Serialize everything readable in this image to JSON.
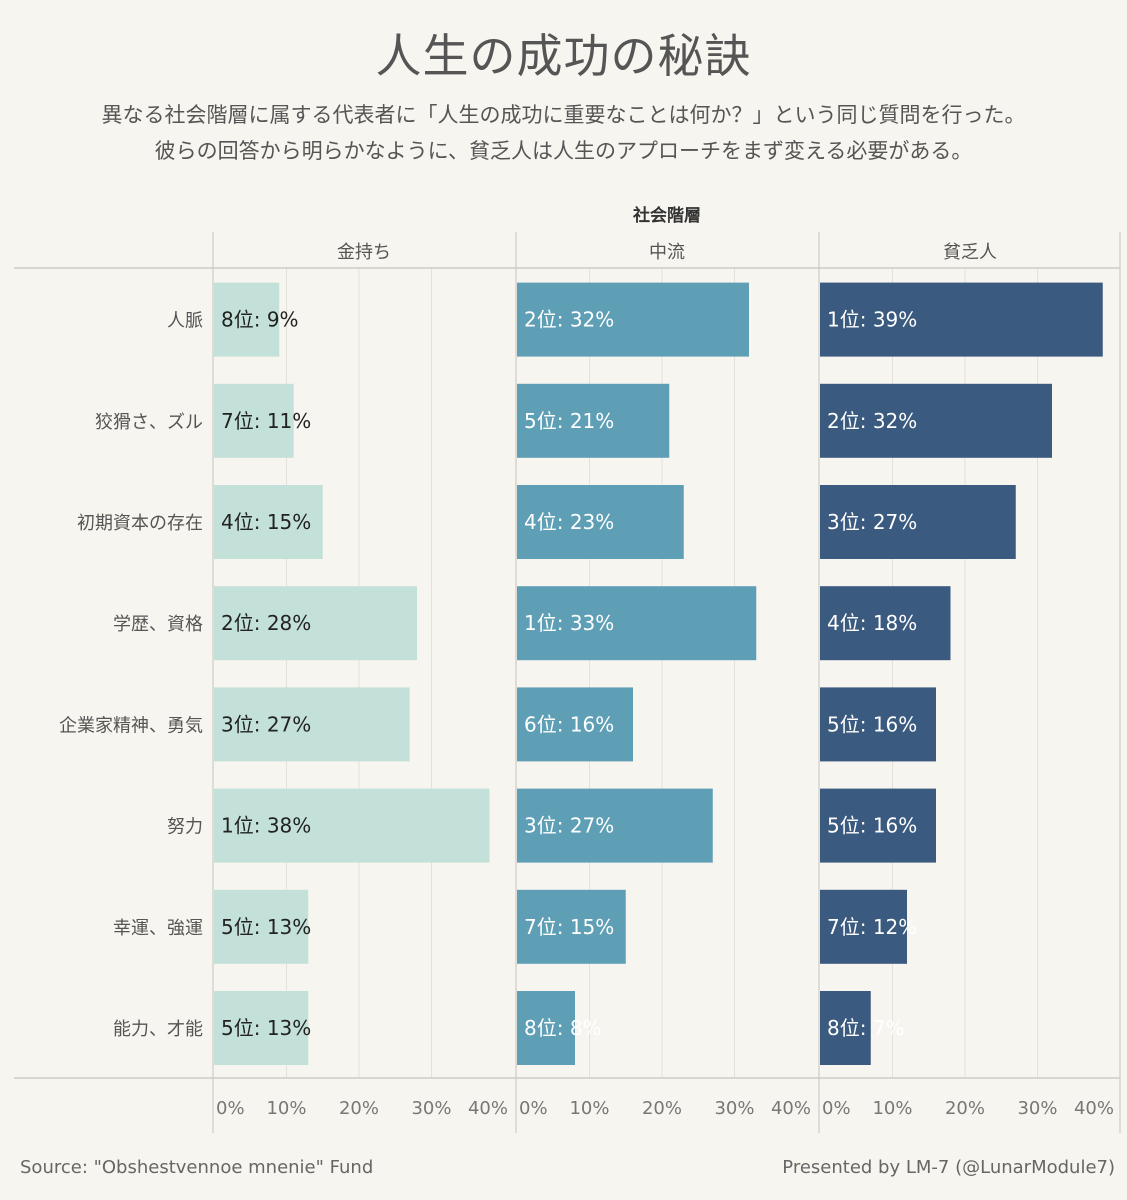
{
  "title": "人生の成功の秘訣",
  "subtitle_lines": [
    "異なる社会階層に属する代表者に「人生の成功に重要なことは何か？」という同じ質問を行った。",
    "彼らの回答から明らかなように、貧乏人は人生のアプローチをまず変える必要がある。"
  ],
  "footer": {
    "source": "Source: \"Obshestvennoe mnenie\" Fund",
    "credit": "Presented by LM-7 (@LunarModule7)"
  },
  "chart_data": {
    "type": "bar",
    "orientation": "horizontal",
    "facet_header": "社会階層",
    "categories": [
      "人脈",
      "狡猾さ、ズル",
      "初期資本の存在",
      "学歴、資格",
      "企業家精神、勇気",
      "努力",
      "幸運、強運",
      "能力、才能"
    ],
    "xlim": [
      0,
      40
    ],
    "x_ticks": [
      "0%",
      "10%",
      "20%",
      "30%",
      "40%"
    ],
    "grid": true,
    "series": [
      {
        "name": "金持ち",
        "color": "#c3e1d9",
        "label_color": "#222222",
        "values": [
          9,
          11,
          15,
          28,
          27,
          38,
          13,
          13
        ],
        "ranks": [
          8,
          7,
          4,
          2,
          3,
          1,
          5,
          5
        ],
        "labels": [
          "8位: 9%",
          "7位: 11%",
          "4位: 15%",
          "2位: 28%",
          "3位: 27%",
          "1位: 38%",
          "5位: 13%",
          "5位: 13%"
        ]
      },
      {
        "name": "中流",
        "color": "#5f9fb6",
        "label_color": "#ffffff",
        "values": [
          32,
          21,
          23,
          33,
          16,
          27,
          15,
          8
        ],
        "ranks": [
          2,
          5,
          4,
          1,
          6,
          3,
          7,
          8
        ],
        "labels": [
          "2位: 32%",
          "5位: 21%",
          "4位: 23%",
          "1位: 33%",
          "6位: 16%",
          "3位: 27%",
          "7位: 15%",
          "8位: 8%"
        ]
      },
      {
        "name": "貧乏人",
        "color": "#3a5a80",
        "label_color": "#ffffff",
        "values": [
          39,
          32,
          27,
          18,
          16,
          16,
          12,
          7
        ],
        "ranks": [
          1,
          2,
          3,
          4,
          5,
          5,
          7,
          8
        ],
        "labels": [
          "1位: 39%",
          "2位: 32%",
          "3位: 27%",
          "4位: 18%",
          "5位: 16%",
          "5位: 16%",
          "7位: 12%",
          "8位: 7%"
        ]
      }
    ]
  }
}
